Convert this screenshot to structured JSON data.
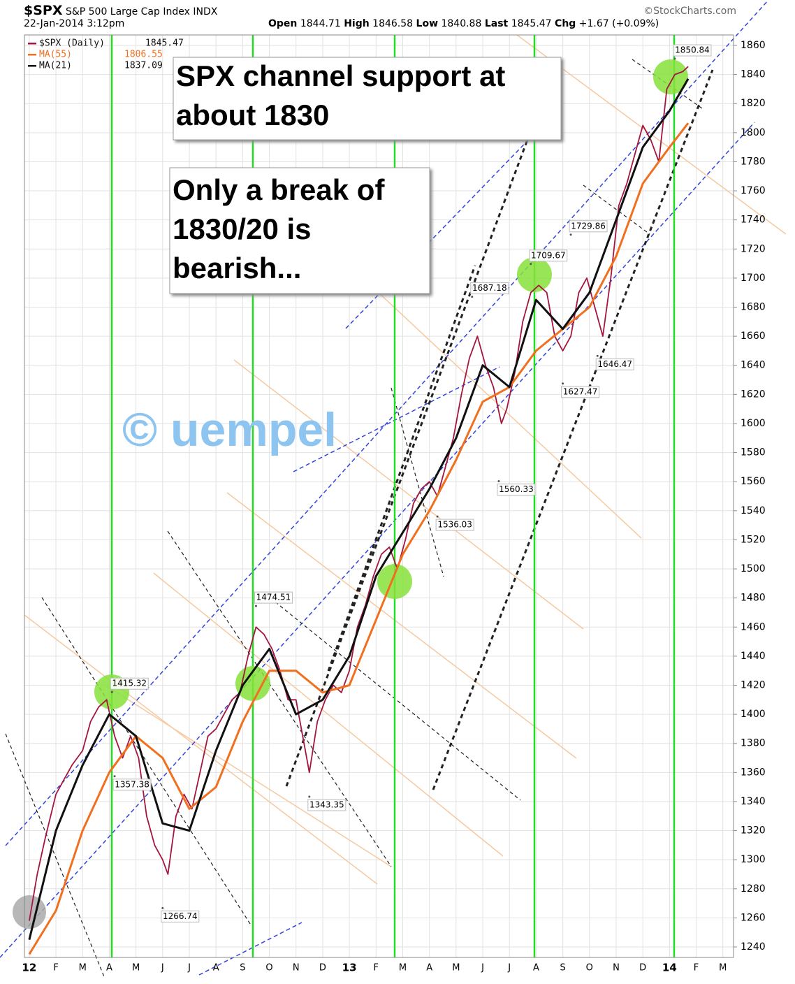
{
  "header": {
    "symbol": "$SPX",
    "name": "S&P 500 Large Cap Index",
    "exchange": "INDX",
    "date": "22-Jan-2014 3:12pm",
    "source": "©StockCharts.com",
    "quote": [
      {
        "label": "Open",
        "value": 1844.71
      },
      {
        "label": "High",
        "value": 1846.58
      },
      {
        "label": "Low",
        "value": 1840.88
      },
      {
        "label": "Last",
        "value": 1845.47
      }
    ],
    "chg_label": "Chg",
    "chg": "+1.67 (+0.09%)"
  },
  "chart_data": {
    "type": "line",
    "text_boxes": [
      [
        "SPX channel support at",
        "about 1830"
      ],
      [
        "Only a break of",
        "1830/20 is",
        "bearish..."
      ]
    ],
    "watermark": "© uempel",
    "xlim": [
      -0.18,
      26.4
    ],
    "ylim": [
      1232.8,
      1867.2
    ],
    "xticks": [
      {
        "value": 0,
        "label": "12"
      },
      {
        "value": 1,
        "label": "F"
      },
      {
        "value": 2,
        "label": "M"
      },
      {
        "value": 3,
        "label": "A"
      },
      {
        "value": 4,
        "label": "M"
      },
      {
        "value": 5,
        "label": "J"
      },
      {
        "value": 6,
        "label": "J"
      },
      {
        "value": 7,
        "label": "A"
      },
      {
        "value": 8,
        "label": "S"
      },
      {
        "value": 9,
        "label": "O"
      },
      {
        "value": 10,
        "label": "N"
      },
      {
        "value": 11,
        "label": "D"
      },
      {
        "value": 12,
        "label": "13"
      },
      {
        "value": 13,
        "label": "F"
      },
      {
        "value": 14,
        "label": "M"
      },
      {
        "value": 15,
        "label": "A"
      },
      {
        "value": 16,
        "label": "M"
      },
      {
        "value": 17,
        "label": "J"
      },
      {
        "value": 18,
        "label": "J"
      },
      {
        "value": 19,
        "label": "A"
      },
      {
        "value": 20,
        "label": "S"
      },
      {
        "value": 21,
        "label": "O"
      },
      {
        "value": 22,
        "label": "N"
      },
      {
        "value": 23,
        "label": "D"
      },
      {
        "value": 24,
        "label": "14"
      },
      {
        "value": 25,
        "label": "F"
      },
      {
        "value": 26,
        "label": "M"
      }
    ],
    "yticks": [
      1240,
      1260,
      1280,
      1300,
      1320,
      1340,
      1360,
      1380,
      1400,
      1420,
      1440,
      1460,
      1480,
      1500,
      1520,
      1540,
      1560,
      1580,
      1600,
      1620,
      1640,
      1660,
      1680,
      1700,
      1720,
      1740,
      1760,
      1780,
      1800,
      1820,
      1840,
      1860
    ],
    "grid": true,
    "series": [
      {
        "name": "$SPX (Daily)",
        "last": 1845.47,
        "color": "#a3173f",
        "x": [
          0,
          0.3,
          0.6,
          1,
          1.3,
          1.6,
          2,
          2.3,
          2.6,
          2.9,
          3.2,
          3.5,
          3.8,
          4.1,
          4.4,
          4.7,
          5,
          5.2,
          5.5,
          5.8,
          6.1,
          6.4,
          6.7,
          7,
          7.3,
          7.6,
          7.9,
          8.2,
          8.5,
          8.8,
          9.1,
          9.4,
          9.7,
          10,
          10.3,
          10.5,
          10.8,
          11.1,
          11.4,
          11.7,
          12,
          12.3,
          12.6,
          12.9,
          13.2,
          13.5,
          13.8,
          14.1,
          14.4,
          14.7,
          15,
          15.3,
          15.6,
          15.9,
          16.2,
          16.5,
          16.8,
          17.1,
          17.4,
          17.7,
          17.9,
          18.2,
          18.5,
          18.8,
          19.1,
          19.4,
          19.7,
          20,
          20.3,
          20.6,
          20.9,
          21.2,
          21.5,
          21.8,
          22.1,
          22.4,
          22.7,
          23,
          23.3,
          23.6,
          23.9,
          24.2,
          24.5,
          24.7
        ],
        "values": [
          1258,
          1290,
          1315,
          1345,
          1355,
          1365,
          1375,
          1395,
          1405,
          1410,
          1385,
          1370,
          1385,
          1370,
          1330,
          1310,
          1300,
          1290,
          1330,
          1345,
          1335,
          1360,
          1385,
          1390,
          1400,
          1410,
          1415,
          1440,
          1460,
          1455,
          1445,
          1430,
          1410,
          1410,
          1380,
          1360,
          1395,
          1410,
          1420,
          1415,
          1430,
          1460,
          1475,
          1495,
          1510,
          1515,
          1500,
          1520,
          1545,
          1555,
          1560,
          1550,
          1570,
          1590,
          1620,
          1645,
          1660,
          1640,
          1625,
          1600,
          1610,
          1635,
          1670,
          1690,
          1695,
          1690,
          1660,
          1650,
          1660,
          1690,
          1700,
          1680,
          1660,
          1700,
          1750,
          1765,
          1785,
          1805,
          1795,
          1780,
          1830,
          1840,
          1842,
          1845.47
        ]
      },
      {
        "name": "MA(55)",
        "last": 1806.55,
        "color": "#f07020",
        "x": [
          0,
          1,
          2,
          3,
          4,
          5,
          6,
          7,
          8,
          9,
          10,
          11,
          12,
          13,
          14,
          15,
          16,
          17,
          18,
          19,
          20,
          21,
          22,
          23,
          24,
          24.7
        ],
        "values": [
          1235,
          1265,
          1320,
          1360,
          1385,
          1370,
          1335,
          1350,
          1395,
          1430,
          1430,
          1415,
          1420,
          1465,
          1510,
          1540,
          1575,
          1615,
          1625,
          1650,
          1665,
          1680,
          1715,
          1765,
          1790,
          1806.55
        ]
      },
      {
        "name": "MA(21)",
        "last": 1837.09,
        "color": "#111111",
        "x": [
          0,
          1,
          2,
          3,
          4,
          5,
          6,
          7,
          8,
          9,
          10,
          11,
          12,
          13,
          14,
          15,
          16,
          17,
          18,
          19,
          20,
          21,
          22,
          23,
          24,
          24.7
        ],
        "values": [
          1245,
          1320,
          1365,
          1400,
          1385,
          1325,
          1320,
          1375,
          1420,
          1445,
          1400,
          1410,
          1440,
          1495,
          1525,
          1555,
          1590,
          1640,
          1625,
          1685,
          1665,
          1690,
          1740,
          1790,
          1815,
          1837.09
        ]
      }
    ],
    "annotations": [
      {
        "x": 3.1,
        "y": 1415.32
      },
      {
        "x": 3.2,
        "y": 1357.38
      },
      {
        "x": 5.0,
        "y": 1266.74
      },
      {
        "x": 8.5,
        "y": 1474.51
      },
      {
        "x": 10.5,
        "y": 1343.35
      },
      {
        "x": 15.3,
        "y": 1536.03
      },
      {
        "x": 17.6,
        "y": 1560.33
      },
      {
        "x": 16.6,
        "y": 1687.18
      },
      {
        "x": 18.8,
        "y": 1709.67
      },
      {
        "x": 20.3,
        "y": 1729.86
      },
      {
        "x": 20.0,
        "y": 1627.47
      },
      {
        "x": 21.3,
        "y": 1646.47
      },
      {
        "x": 24.2,
        "y": 1850.84
      }
    ]
  }
}
